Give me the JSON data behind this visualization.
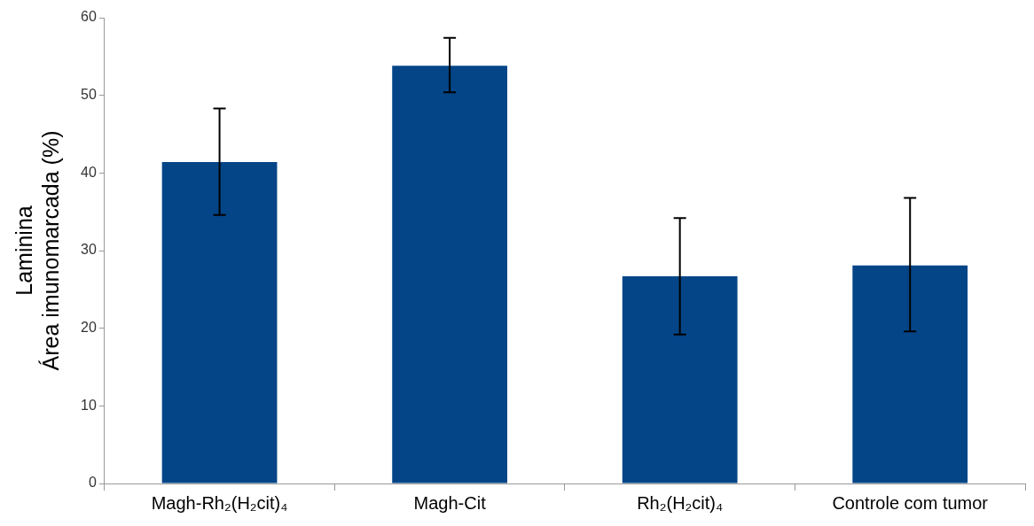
{
  "chart_data": {
    "type": "bar",
    "ylabel": "Laminina\nÁrea imunomarcada (%)",
    "categories": [
      "Magh-Rh₂(H₂cit)₄",
      "Magh-Cit",
      "Rh₂(H₂cit)₄",
      "Controle com tumor"
    ],
    "values": [
      41.4,
      53.8,
      26.7,
      28.1
    ],
    "errors": [
      [
        34.6,
        48.3
      ],
      [
        50.4,
        57.4
      ],
      [
        19.2,
        34.2
      ],
      [
        19.6,
        36.8
      ]
    ],
    "color": "#034587",
    "ylim": [
      0,
      60
    ],
    "yticks": [
      0,
      10,
      20,
      30,
      40,
      50,
      60
    ],
    "grid": false,
    "legend": false
  }
}
